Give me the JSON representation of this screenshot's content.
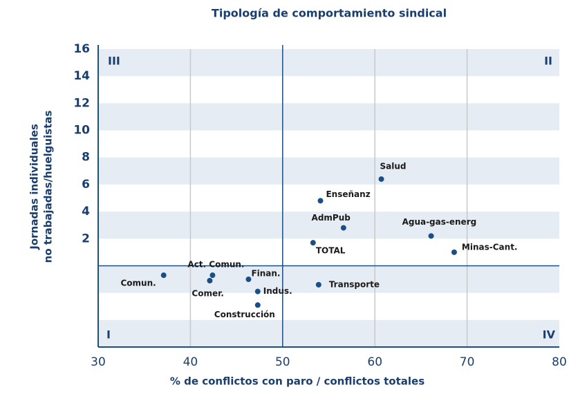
{
  "chart_data": {
    "type": "scatter",
    "title": "Tipología de comportamiento sindical",
    "xlabel": "% de conflictos con paro / conflictos totales",
    "ylabel": [
      "Jornadas individuales",
      "no trabajadas/huelguistas"
    ],
    "labels": [
      "Salud",
      "Enseñanz",
      "AdmPub",
      "Agua-gas-energ",
      "TOTAL",
      "Minas-Cant.",
      "Comun.",
      "Act. Comun.",
      "Comer.",
      "Finan.",
      "Indus.",
      "Transporte",
      "Construcción"
    ],
    "x": [
      60.7,
      54.1,
      56.6,
      66.1,
      53.3,
      68.6,
      37.1,
      42.4,
      42.1,
      46.3,
      47.3,
      53.9,
      47.3
    ],
    "values": [
      6.4,
      4.8,
      2.8,
      2.2,
      1.7,
      1.0,
      -0.7,
      -0.7,
      -1.1,
      -1.0,
      -1.9,
      -1.4,
      -2.9
    ],
    "color": "#1a4f86",
    "xlim": [
      30,
      80
    ],
    "xticks": [
      30,
      40,
      50,
      60,
      70,
      80
    ],
    "ylim": [
      -6,
      16
    ],
    "yticks": [
      2,
      4,
      6,
      8,
      10,
      12,
      14,
      16
    ],
    "reference_lines": {
      "x": 50,
      "y": 0
    },
    "quadrants": {
      "top_left": "III",
      "top_right": "II",
      "bottom_left": "I",
      "bottom_right": "IV"
    },
    "grid": true
  }
}
